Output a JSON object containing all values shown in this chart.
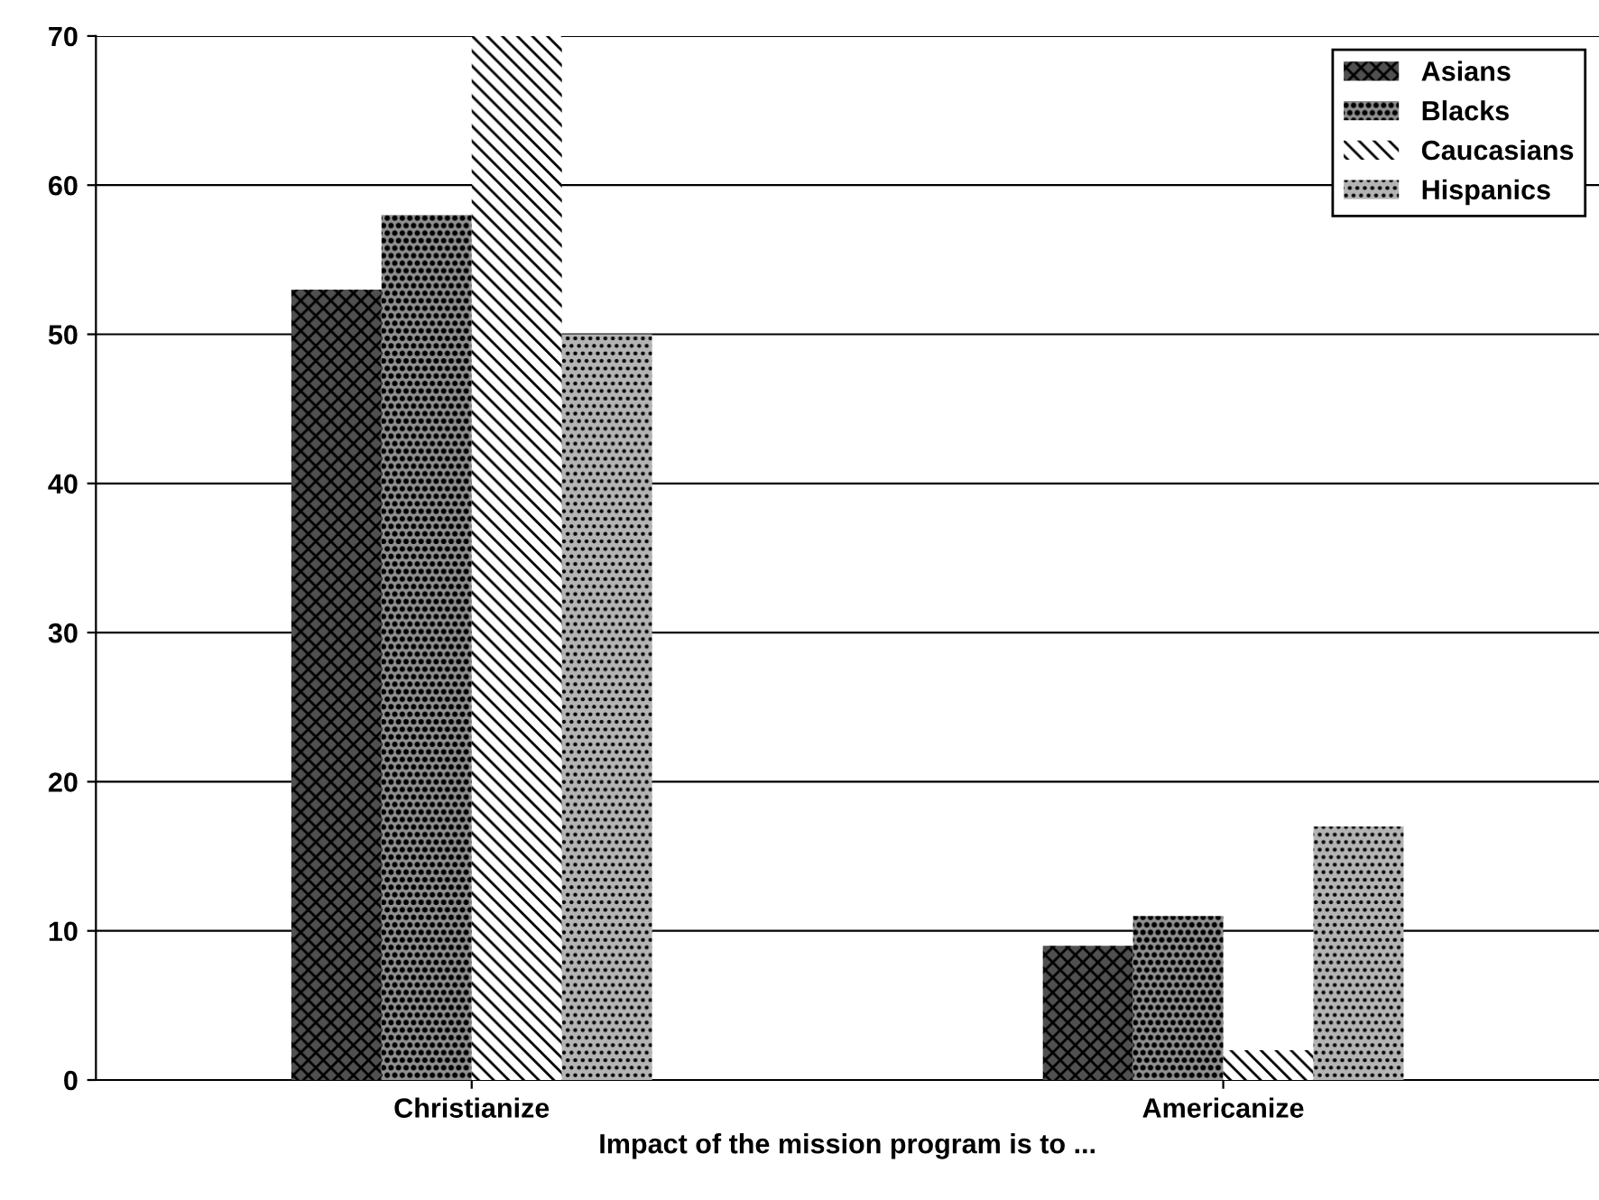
{
  "chart_data": {
    "type": "bar",
    "xlabel": "Impact of the mission program is to ...",
    "categories": [
      "Christianize",
      "Americanize"
    ],
    "series": [
      {
        "name": "Asians",
        "color": "#505050",
        "values": [
          53,
          9
        ]
      },
      {
        "name": "Blacks",
        "color": "#909090",
        "values": [
          58,
          11
        ]
      },
      {
        "name": "Caucasians",
        "color": "#ffffff",
        "values": [
          70,
          2
        ]
      },
      {
        "name": "Hispanics",
        "color": "#b4b4b4",
        "values": [
          50,
          17
        ]
      }
    ],
    "ylim": [
      0,
      70
    ],
    "yticks": [
      0,
      10,
      20,
      30,
      40,
      50,
      60,
      70
    ],
    "grid": "y",
    "legend": "top right"
  }
}
